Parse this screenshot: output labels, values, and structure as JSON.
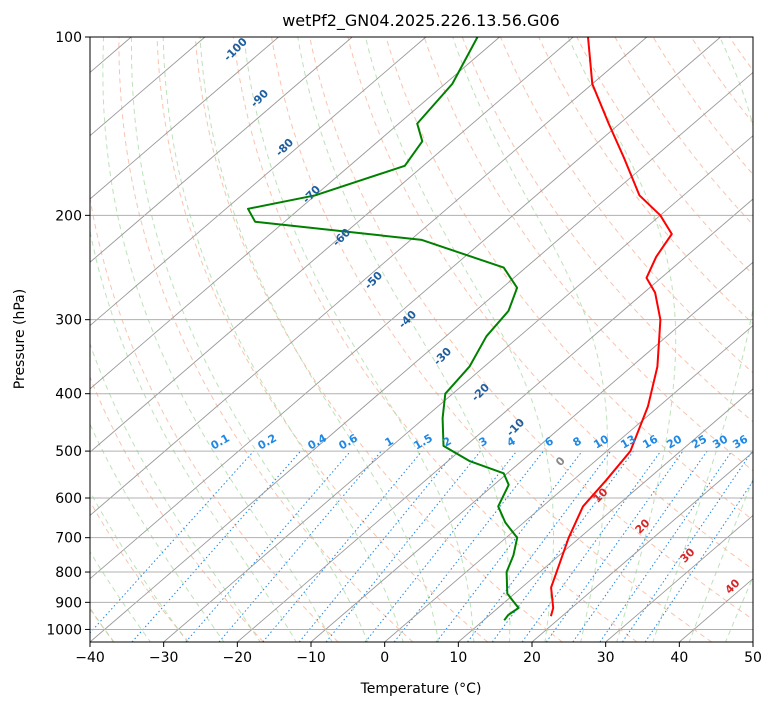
{
  "chart_data": {
    "type": "line",
    "chart_kind": "skew-T log-P diagram",
    "title": "wetPf2_GN04.2025.226.13.56.G06",
    "xlabel": "Temperature (°C)",
    "ylabel": "Pressure (hPa)",
    "xlim": [
      -40,
      50
    ],
    "ylim": [
      1050,
      100
    ],
    "y_scale": "log",
    "grid": true,
    "x_ticks": [
      "−40",
      "−30",
      "−20",
      "−10",
      "0",
      "10",
      "20",
      "30",
      "40",
      "50"
    ],
    "x_tick_values": [
      -40,
      -30,
      -20,
      -10,
      0,
      10,
      20,
      30,
      40,
      50
    ],
    "y_ticks": [
      "100",
      "200",
      "300",
      "400",
      "500",
      "600",
      "700",
      "800",
      "900",
      "1000"
    ],
    "y_tick_values": [
      100,
      200,
      300,
      400,
      500,
      600,
      700,
      800,
      900,
      1000
    ],
    "skew_deg_per_decade_note": "isotherms skewed to the right",
    "colors": {
      "temperature": "#ff0000",
      "dewpoint": "#008000",
      "dry_adiabat": "#f4a582",
      "moist_adiabat": "#a6d8a0",
      "mixing_ratio": "#1e88e5",
      "mixing_label": "#1e88e5",
      "moist_label": "#1f5fa0",
      "dry_label": "#d62728",
      "isotherm": "#999999",
      "hline": "#b0b0b0",
      "frame": "#000000"
    },
    "series": [
      {
        "kind": "temperature",
        "points": [
          {
            "p": 950,
            "t": 18.5
          },
          {
            "p": 920,
            "t": 17.5
          },
          {
            "p": 850,
            "t": 14.0
          },
          {
            "p": 700,
            "t": 8.5
          },
          {
            "p": 620,
            "t": 5.5
          },
          {
            "p": 560,
            "t": 4.5
          },
          {
            "p": 500,
            "t": 3.2
          },
          {
            "p": 420,
            "t": -1.5
          },
          {
            "p": 360,
            "t": -6.5
          },
          {
            "p": 300,
            "t": -13.5
          },
          {
            "p": 270,
            "t": -18.5
          },
          {
            "p": 255,
            "t": -22.0
          },
          {
            "p": 235,
            "t": -24.0
          },
          {
            "p": 215,
            "t": -25.5
          },
          {
            "p": 200,
            "t": -30.0
          },
          {
            "p": 185,
            "t": -36.0
          },
          {
            "p": 160,
            "t": -44.0
          },
          {
            "p": 140,
            "t": -51.5
          },
          {
            "p": 120,
            "t": -60.0
          },
          {
            "p": 100,
            "t": -68.0
          }
        ]
      },
      {
        "kind": "dewpoint",
        "points": [
          {
            "p": 965,
            "t": 12.8
          },
          {
            "p": 945,
            "t": 12.5
          },
          {
            "p": 920,
            "t": 12.8
          },
          {
            "p": 870,
            "t": 9.0
          },
          {
            "p": 800,
            "t": 5.5
          },
          {
            "p": 750,
            "t": 3.8
          },
          {
            "p": 700,
            "t": 1.5
          },
          {
            "p": 660,
            "t": -2.5
          },
          {
            "p": 620,
            "t": -6.0
          },
          {
            "p": 570,
            "t": -8.0
          },
          {
            "p": 545,
            "t": -10.5
          },
          {
            "p": 520,
            "t": -17.0
          },
          {
            "p": 490,
            "t": -23.0
          },
          {
            "p": 440,
            "t": -27.5
          },
          {
            "p": 400,
            "t": -31.0
          },
          {
            "p": 360,
            "t": -32.0
          },
          {
            "p": 320,
            "t": -34.5
          },
          {
            "p": 290,
            "t": -35.5
          },
          {
            "p": 265,
            "t": -38.0
          },
          {
            "p": 245,
            "t": -43.0
          },
          {
            "p": 220,
            "t": -58.5
          },
          {
            "p": 205,
            "t": -84.0
          },
          {
            "p": 195,
            "t": -87.0
          },
          {
            "p": 185,
            "t": -80.0
          },
          {
            "p": 165,
            "t": -72.5
          },
          {
            "p": 150,
            "t": -74.0
          },
          {
            "p": 140,
            "t": -77.5
          },
          {
            "p": 120,
            "t": -79.0
          },
          {
            "p": 100,
            "t": -83.0
          }
        ]
      }
    ],
    "moist_adiabat_labels": [
      "-100",
      "-90",
      "-80",
      "-70",
      "-60",
      "-50",
      "-40",
      "-30",
      "-20",
      "-10"
    ],
    "mixing_ratio_labels": [
      "0.1",
      "0.2",
      "0.4",
      "0.6",
      "1",
      "1.5",
      "2",
      "3",
      "4",
      "6",
      "8",
      "10",
      "13",
      "16",
      "20",
      "25",
      "30",
      "36"
    ],
    "dry_adiabat_labels": [
      "0",
      "10",
      "20",
      "30",
      "40"
    ]
  }
}
